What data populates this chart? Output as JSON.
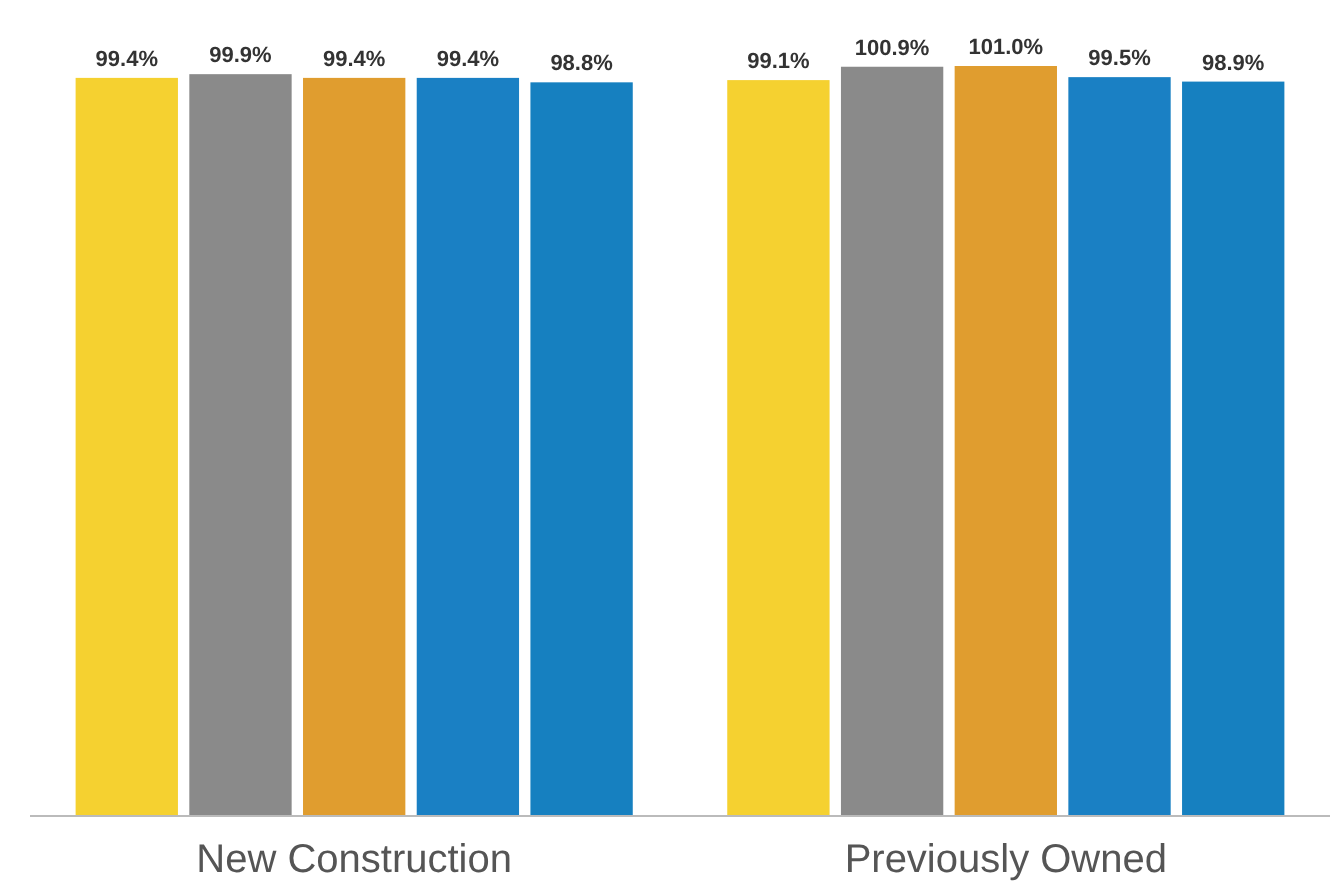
{
  "chart_data": {
    "type": "bar",
    "categories": [
      "New Construction",
      "Previously Owned"
    ],
    "ylim": [
      0,
      101
    ],
    "series": [
      {
        "color": "#f5d130",
        "values": [
          99.4,
          99.1
        ],
        "value_labels": [
          "99.4%",
          "99.1%"
        ]
      },
      {
        "color": "#8a8a8a",
        "values": [
          99.9,
          100.9
        ],
        "value_labels": [
          "99.9%",
          "100.9%"
        ]
      },
      {
        "color": "#e09d2f",
        "values": [
          99.4,
          101.0
        ],
        "value_labels": [
          "99.4%",
          "101.0%"
        ]
      },
      {
        "color": "#1a80c4",
        "values": [
          99.4,
          99.5
        ],
        "value_labels": [
          "99.4%",
          "99.5%"
        ]
      },
      {
        "color": "#1680c0",
        "values": [
          98.8,
          98.9
        ],
        "value_labels": [
          "98.8%",
          "98.9%"
        ]
      }
    ]
  }
}
